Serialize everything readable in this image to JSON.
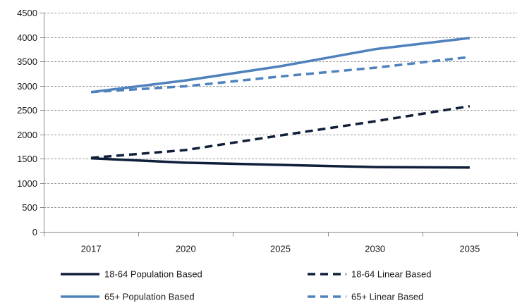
{
  "chart_data": {
    "type": "line",
    "categories": [
      "2017",
      "2020",
      "2025",
      "2030",
      "2035"
    ],
    "ylim": [
      0,
      4500
    ],
    "yticks": [
      0,
      500,
      1000,
      1500,
      2000,
      2500,
      3000,
      3500,
      4000,
      4500
    ],
    "grid": "horizontal dashed",
    "legend_position": "bottom",
    "series": [
      {
        "name": "18-64 Population Based",
        "values": [
          1510,
          1420,
          1375,
          1330,
          1320
        ],
        "color": "#0f1f3a",
        "dash": "solid"
      },
      {
        "name": "18-64 Linear Based",
        "values": [
          1520,
          1680,
          1980,
          2270,
          2580
        ],
        "color": "#0f1f3a",
        "dash": "dashed"
      },
      {
        "name": "65+ Population Based",
        "values": [
          2870,
          3110,
          3400,
          3750,
          3980
        ],
        "color": "#4f81bd",
        "dash": "solid"
      },
      {
        "name": "65+ Linear Based",
        "values": [
          2870,
          2990,
          3190,
          3370,
          3590
        ],
        "color": "#4f81bd",
        "dash": "dashed"
      }
    ]
  }
}
